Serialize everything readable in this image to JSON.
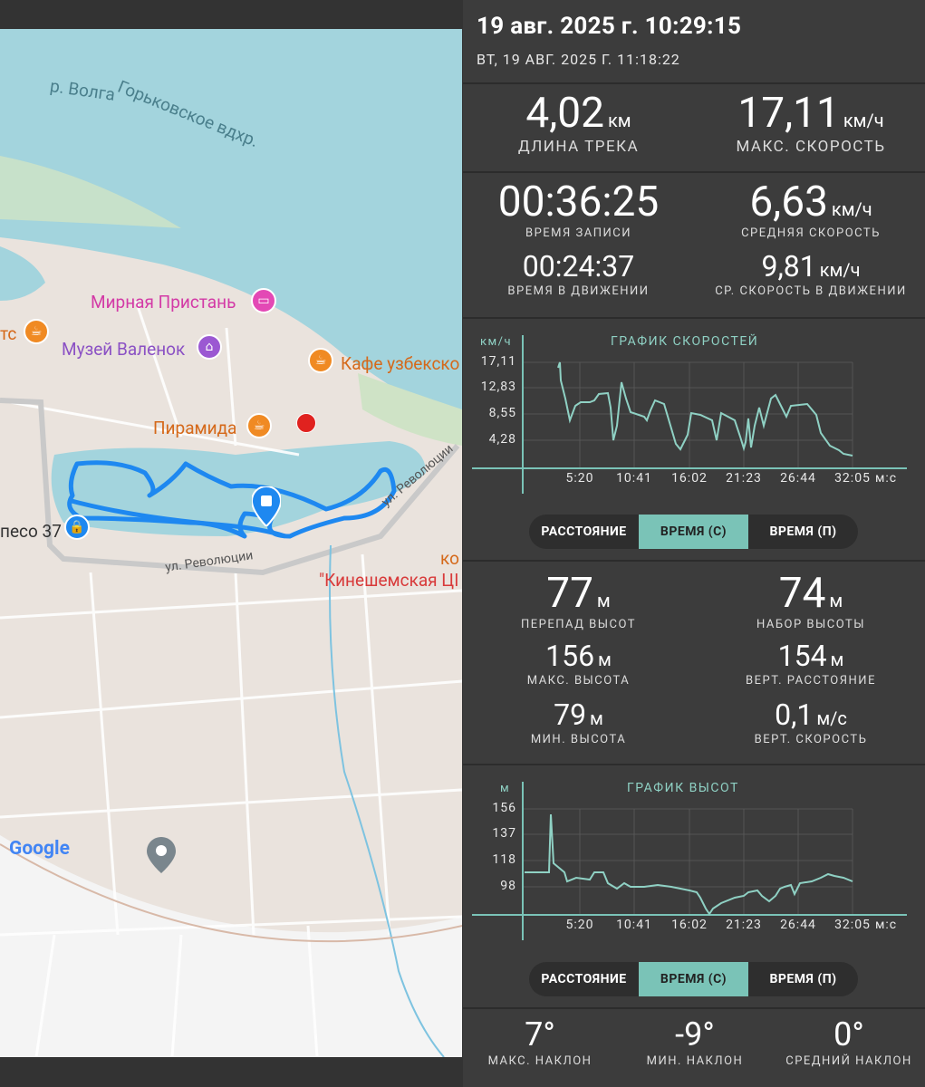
{
  "header": {
    "date": "19 авг. 2025 г. 10:29:15",
    "subdate": "ВТ, 19 АВГ. 2025 Г. 11:18:22"
  },
  "map": {
    "labels": {
      "river": "р. Волга",
      "reservoir": "Горьковское вдхр.",
      "mirnaya": "Мирная Пристань",
      "ts": "тс",
      "muzey": "Музей Валенок",
      "kafe": "Кафе узбекско",
      "piramida": "Пирамида",
      "street1": "ул. Революции",
      "street2": "ул. Революции",
      "koleso": "песо 37",
      "ko": "ко",
      "kinesh": "\"Кинешемская ЦІ",
      "google": "Google"
    }
  },
  "stats1": {
    "length": {
      "value": "4,02",
      "unit": "км",
      "label": "ДЛИНА ТРЕКА"
    },
    "maxspeed": {
      "value": "17,11",
      "unit": "км/ч",
      "label": "МАКС. СКОРОСТЬ"
    }
  },
  "stats2": {
    "rectime": {
      "value": "00:36:25",
      "label": "ВРЕМЯ ЗАПИСИ"
    },
    "avgspeed": {
      "value": "6,63",
      "unit": "км/ч",
      "label": "СРЕДНЯЯ СКОРОСТЬ"
    },
    "movetime": {
      "value": "00:24:37",
      "label": "ВРЕМЯ В ДВИЖЕНИИ"
    },
    "avgmove": {
      "value": "9,81",
      "unit": "км/ч",
      "label": "СР. СКОРОСТЬ В ДВИЖЕНИИ"
    }
  },
  "speed_chart": {
    "title": "ГРАФИК СКОРОСТЕЙ",
    "unit": "км/ч",
    "yticks": [
      "17,11",
      "12,83",
      "8,55",
      "4,28"
    ],
    "xticks": [
      "5:20",
      "10:41",
      "16:02",
      "21:23",
      "26:44",
      "32:05"
    ],
    "xunit": "м:с"
  },
  "tabs1": {
    "distance": "РАССТОЯНИЕ",
    "time_c": "ВРЕМЯ (С)",
    "time_p": "ВРЕМЯ (П)"
  },
  "stats3": {
    "drop": {
      "value": "77",
      "unit": "м",
      "label": "ПЕРЕПАД ВЫСОТ"
    },
    "gain": {
      "value": "74",
      "unit": "м",
      "label": "НАБОР ВЫСОТЫ"
    },
    "maxalt": {
      "value": "156",
      "unit": "м",
      "label": "МАКС. ВЫСОТА"
    },
    "vertdist": {
      "value": "154",
      "unit": "м",
      "label": "ВЕРТ. РАССТОЯНИЕ"
    },
    "minalt": {
      "value": "79",
      "unit": "м",
      "label": "МИН. ВЫСОТА"
    },
    "vertspeed": {
      "value": "0,1",
      "unit": "м/с",
      "label": "ВЕРТ. СКОРОСТЬ"
    }
  },
  "alt_chart": {
    "title": "ГРАФИК ВЫСОТ",
    "unit": "м",
    "yticks": [
      "156",
      "137",
      "118",
      "98"
    ],
    "xticks": [
      "5:20",
      "10:41",
      "16:02",
      "21:23",
      "26:44",
      "32:05"
    ],
    "xunit": "м:с"
  },
  "tabs2": {
    "distance": "РАССТОЯНИЕ",
    "time_c": "ВРЕМЯ (С)",
    "time_p": "ВРЕМЯ (П)"
  },
  "stats4": {
    "maxslope": {
      "value": "7°",
      "label": "МАКС. НАКЛОН"
    },
    "minslope": {
      "value": "-9°",
      "label": "МИН. НАКЛОН"
    },
    "avgslope": {
      "value": "0°",
      "label": "СРЕДНИЙ НАКЛОН"
    }
  },
  "colors": {
    "accent": "#7ac3b7",
    "track": "#1e88f0",
    "water": "#a3d4dd"
  }
}
